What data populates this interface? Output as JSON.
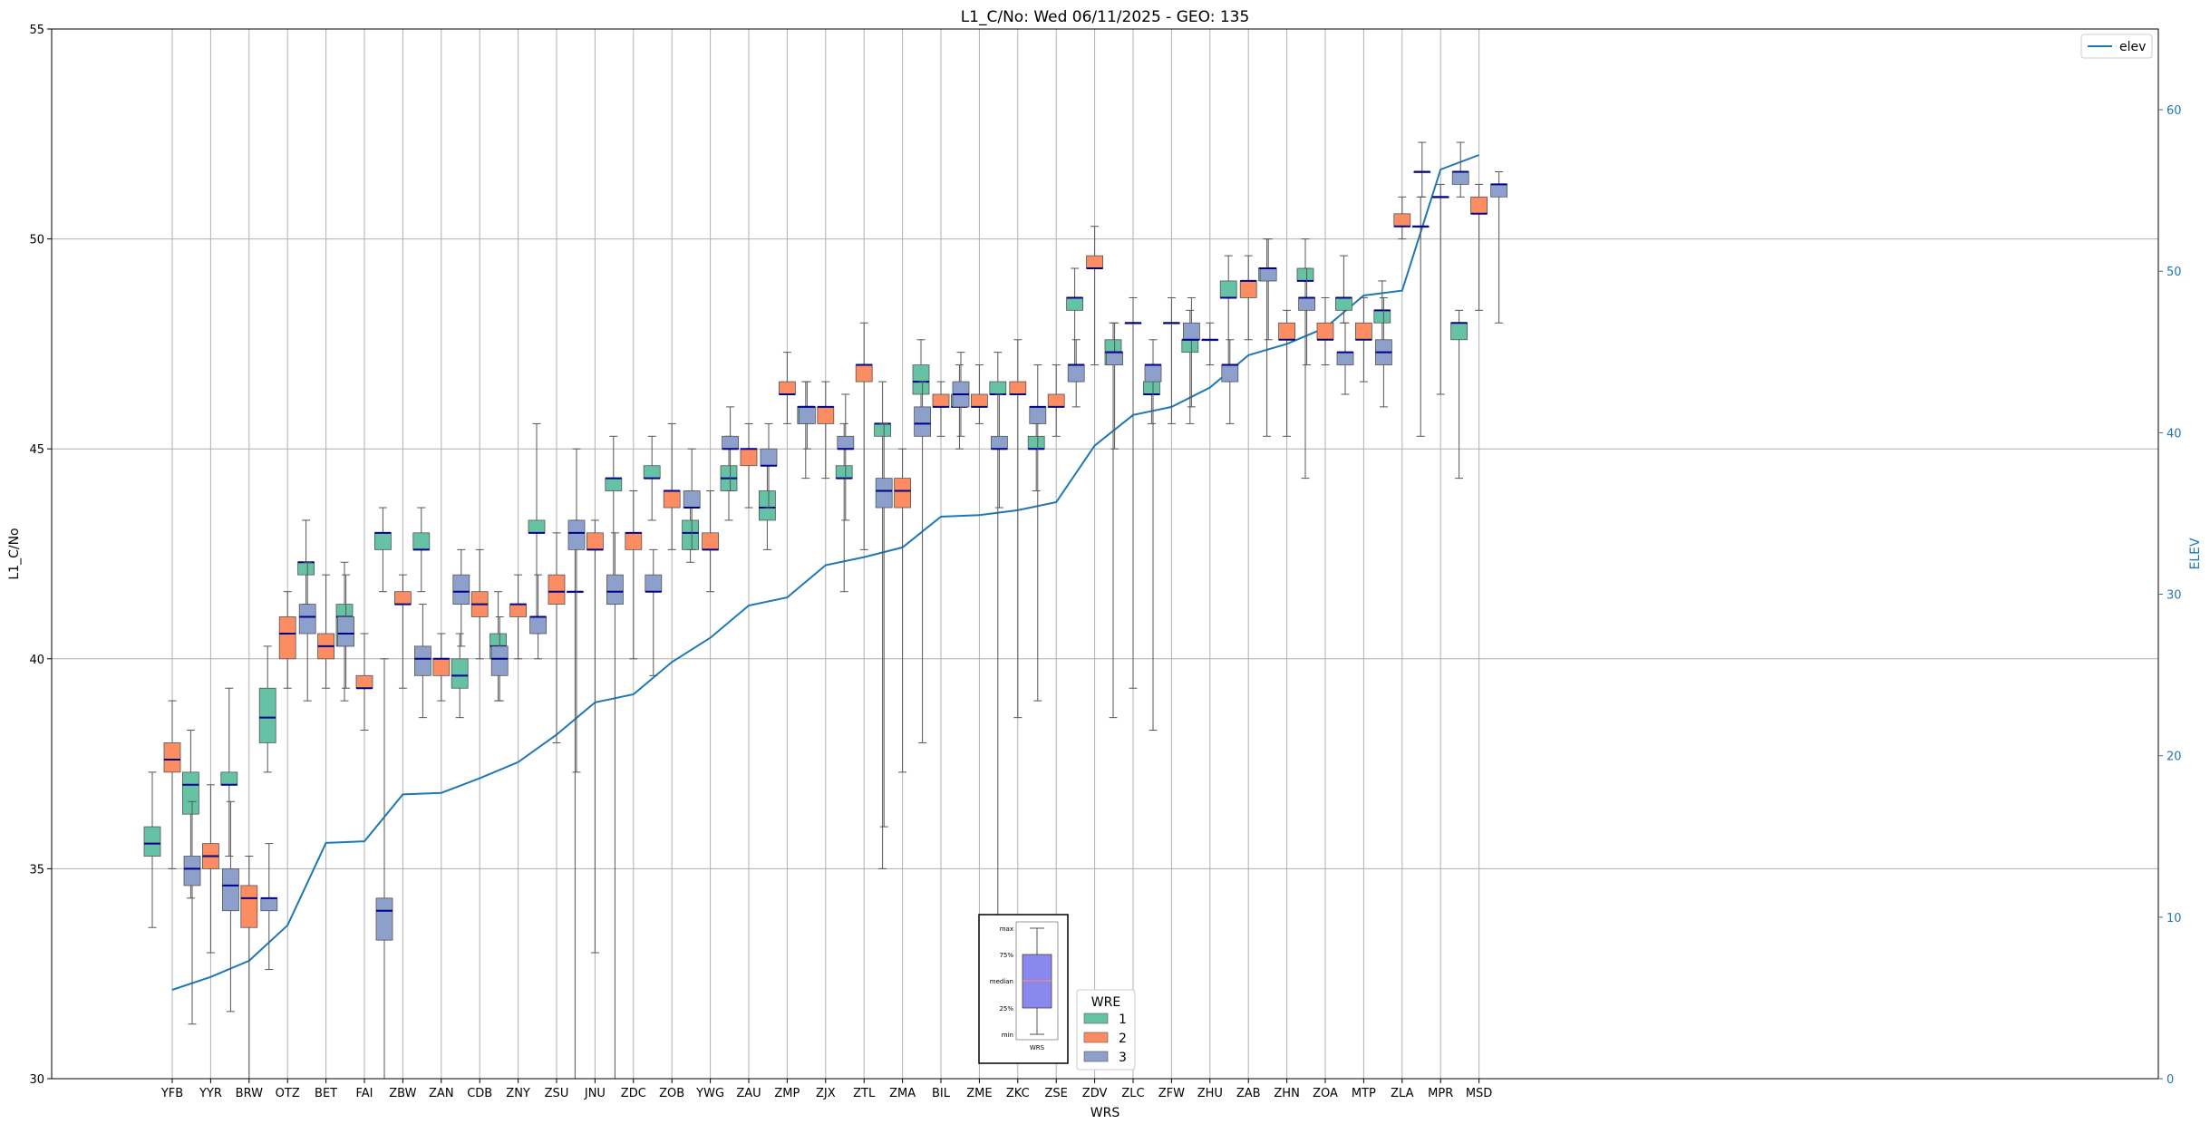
{
  "chart_data": {
    "type": "boxplot",
    "title": "L1_C/No: Wed 06/11/2025 - GEO: 135",
    "xlabel": "WRS",
    "ylabel": "L1_C/No",
    "y2label": "ELEV",
    "ylim": [
      30,
      55
    ],
    "y2lim": [
      0,
      65
    ],
    "yticks": [
      "30",
      "35",
      "40",
      "45",
      "50",
      "55"
    ],
    "y2ticks": [
      "0",
      "10",
      "20",
      "30",
      "40",
      "50",
      "60"
    ],
    "grid": true,
    "categories": [
      "YFB",
      "YYR",
      "BRW",
      "OTZ",
      "BET",
      "FAI",
      "ZBW",
      "ZAN",
      "CDB",
      "ZNY",
      "ZSU",
      "JNU",
      "ZDC",
      "ZOB",
      "YWG",
      "ZAU",
      "ZMP",
      "ZJX",
      "ZTL",
      "ZMA",
      "BIL",
      "ZME",
      "ZKC",
      "ZSE",
      "ZDV",
      "ZLC",
      "ZFW",
      "ZHU",
      "ZAB",
      "ZHN",
      "ZOA",
      "MTP",
      "ZLA",
      "MPR",
      "MSD"
    ],
    "series_colors": {
      "1": "#66c2a5",
      "2": "#fc8d62",
      "3": "#8da0cb"
    },
    "median_color": "#00008b",
    "elev_color": "#1f77b4",
    "series": [
      {
        "name": "1",
        "boxes": [
          [
            33.6,
            35.3,
            35.6,
            36.0,
            37.3
          ],
          [
            34.3,
            36.3,
            37.0,
            37.3,
            38.3
          ],
          [
            35.3,
            37.0,
            37.0,
            37.3,
            39.3
          ],
          [
            37.3,
            38.0,
            38.6,
            39.3,
            40.3
          ],
          [
            41.3,
            42.0,
            42.3,
            42.3,
            43.3
          ],
          [
            39.0,
            40.3,
            41.0,
            41.3,
            42.3
          ],
          [
            41.6,
            42.6,
            43.0,
            43.0,
            43.6
          ],
          [
            41.6,
            42.6,
            42.6,
            43.0,
            43.6
          ],
          [
            38.6,
            39.3,
            39.6,
            40.0,
            40.6
          ],
          [
            39.0,
            40.0,
            40.3,
            40.6,
            41.6
          ],
          [
            40.6,
            43.0,
            43.0,
            43.3,
            45.6
          ],
          [
            30.0,
            41.6,
            41.6,
            41.6,
            43.3
          ],
          [
            41.3,
            44.0,
            44.3,
            44.3,
            45.3
          ],
          [
            43.3,
            44.3,
            44.3,
            44.6,
            45.3
          ],
          [
            42.3,
            42.6,
            43.0,
            43.3,
            44.0
          ],
          [
            43.3,
            44.0,
            44.3,
            44.6,
            45.3
          ],
          [
            42.6,
            43.3,
            43.6,
            44.0,
            44.6
          ],
          [
            44.3,
            45.6,
            46.0,
            46.0,
            46.6
          ],
          [
            41.6,
            44.3,
            44.3,
            44.6,
            45.6
          ],
          [
            35.0,
            45.3,
            45.6,
            45.6,
            46.6
          ],
          [
            45.6,
            46.3,
            46.6,
            47.0,
            47.6
          ],
          [
            45.0,
            46.0,
            46.0,
            46.3,
            47.0
          ],
          [
            32.3,
            46.3,
            46.3,
            46.6,
            47.3
          ],
          [
            44.0,
            45.0,
            45.0,
            45.3,
            45.6
          ],
          [
            46.6,
            48.3,
            48.6,
            48.6,
            49.3
          ],
          [
            38.6,
            47.0,
            47.3,
            47.6,
            48.0
          ],
          [
            45.6,
            46.3,
            46.3,
            46.6,
            47.0
          ],
          [
            45.6,
            47.3,
            47.6,
            47.6,
            48.3
          ],
          [
            46.6,
            48.6,
            48.6,
            49.0,
            49.6
          ],
          [
            45.3,
            49.0,
            49.3,
            49.3,
            50.0
          ],
          [
            44.3,
            49.0,
            49.0,
            49.3,
            50.0
          ],
          [
            48.0,
            48.3,
            48.6,
            48.6,
            49.6
          ],
          [
            47.3,
            48.0,
            48.3,
            48.3,
            49.0
          ],
          [
            45.3,
            50.3,
            50.3,
            50.3,
            51.0
          ],
          [
            44.3,
            47.6,
            48.0,
            48.0,
            48.3
          ]
        ]
      },
      {
        "name": "2",
        "boxes": [
          [
            35.0,
            37.3,
            37.6,
            38.0,
            39.0
          ],
          [
            33.0,
            35.0,
            35.3,
            35.6,
            37.0
          ],
          [
            30.0,
            33.6,
            34.3,
            34.6,
            35.3
          ],
          [
            39.3,
            40.0,
            40.6,
            41.0,
            41.6
          ],
          [
            39.3,
            40.0,
            40.3,
            40.6,
            42.0
          ],
          [
            38.3,
            39.3,
            39.3,
            39.6,
            40.6
          ],
          [
            39.3,
            41.3,
            41.3,
            41.6,
            42.0
          ],
          [
            39.0,
            39.6,
            40.0,
            40.0,
            40.6
          ],
          [
            40.0,
            41.0,
            41.3,
            41.6,
            42.6
          ],
          [
            40.0,
            41.0,
            41.3,
            41.3,
            42.0
          ],
          [
            38.0,
            41.3,
            41.6,
            42.0,
            43.0
          ],
          [
            33.0,
            42.6,
            42.6,
            43.0,
            43.3
          ],
          [
            40.0,
            42.6,
            43.0,
            43.0,
            44.0
          ],
          [
            42.6,
            43.6,
            44.0,
            44.0,
            45.6
          ],
          [
            41.6,
            42.6,
            42.6,
            43.0,
            44.0
          ],
          [
            43.6,
            44.6,
            45.0,
            45.0,
            45.6
          ],
          [
            45.6,
            46.3,
            46.3,
            46.6,
            47.3
          ],
          [
            44.3,
            45.6,
            46.0,
            46.0,
            46.6
          ],
          [
            42.6,
            46.6,
            47.0,
            47.0,
            48.0
          ],
          [
            37.3,
            43.6,
            44.0,
            44.3,
            45.0
          ],
          [
            45.3,
            46.0,
            46.0,
            46.3,
            46.6
          ],
          [
            45.6,
            46.0,
            46.0,
            46.3,
            47.0
          ],
          [
            38.6,
            46.3,
            46.3,
            46.6,
            47.6
          ],
          [
            45.3,
            46.0,
            46.0,
            46.3,
            47.0
          ],
          [
            47.0,
            49.3,
            49.3,
            49.6,
            50.3
          ],
          [
            39.3,
            48.0,
            48.0,
            48.0,
            48.6
          ],
          [
            45.6,
            48.0,
            48.0,
            48.0,
            48.6
          ],
          [
            47.0,
            47.6,
            47.6,
            47.6,
            48.0
          ],
          [
            47.6,
            48.6,
            49.0,
            49.0,
            49.6
          ],
          [
            45.3,
            47.6,
            47.6,
            48.0,
            48.3
          ],
          [
            47.0,
            47.6,
            47.6,
            48.0,
            48.6
          ],
          [
            46.6,
            47.6,
            47.6,
            48.0,
            48.6
          ],
          [
            50.0,
            50.3,
            50.3,
            50.6,
            51.0
          ],
          [
            46.3,
            51.0,
            51.0,
            51.0,
            51.3
          ],
          [
            48.3,
            50.6,
            50.6,
            51.0,
            51.3
          ]
        ]
      },
      {
        "name": "3",
        "boxes": [
          [
            31.3,
            34.6,
            35.0,
            35.3,
            36.6
          ],
          [
            31.6,
            34.0,
            34.6,
            35.0,
            36.6
          ],
          [
            32.6,
            34.0,
            34.3,
            34.3,
            35.6
          ],
          [
            39.0,
            40.6,
            41.0,
            41.3,
            42.3
          ],
          [
            39.3,
            40.3,
            40.6,
            41.0,
            42.0
          ],
          [
            30.0,
            33.3,
            34.0,
            34.3,
            40.0
          ],
          [
            38.6,
            39.6,
            40.0,
            40.3,
            41.3
          ],
          [
            40.3,
            41.3,
            41.6,
            42.0,
            42.6
          ],
          [
            39.0,
            39.6,
            40.0,
            40.3,
            41.0
          ],
          [
            40.0,
            40.6,
            41.0,
            41.0,
            42.0
          ],
          [
            37.3,
            42.6,
            43.0,
            43.3,
            45.0
          ],
          [
            30.0,
            41.3,
            41.6,
            42.0,
            43.0
          ],
          [
            39.6,
            41.6,
            41.6,
            42.0,
            42.6
          ],
          [
            42.6,
            43.6,
            43.6,
            44.0,
            45.0
          ],
          [
            44.0,
            45.0,
            45.0,
            45.3,
            46.0
          ],
          [
            43.6,
            44.6,
            44.6,
            45.0,
            45.6
          ],
          [
            45.0,
            45.6,
            46.0,
            46.0,
            46.6
          ],
          [
            43.3,
            45.0,
            45.0,
            45.3,
            46.3
          ],
          [
            36.0,
            43.6,
            44.0,
            44.3,
            45.6
          ],
          [
            38.0,
            45.3,
            45.6,
            46.0,
            46.6
          ],
          [
            45.3,
            46.0,
            46.3,
            46.6,
            47.3
          ],
          [
            43.6,
            45.0,
            45.0,
            45.3,
            46.3
          ],
          [
            39.0,
            45.6,
            46.0,
            46.0,
            47.0
          ],
          [
            46.0,
            46.6,
            47.0,
            47.0,
            47.6
          ],
          [
            45.0,
            47.0,
            47.3,
            47.3,
            48.0
          ],
          [
            38.3,
            46.6,
            47.0,
            47.0,
            47.6
          ],
          [
            46.0,
            47.6,
            47.6,
            48.0,
            48.6
          ],
          [
            45.6,
            46.6,
            47.0,
            47.0,
            47.6
          ],
          [
            47.6,
            49.0,
            49.3,
            49.3,
            50.0
          ],
          [
            47.0,
            48.3,
            48.6,
            48.6,
            49.3
          ],
          [
            46.3,
            47.0,
            47.3,
            47.3,
            48.0
          ],
          [
            46.0,
            47.0,
            47.3,
            47.6,
            48.6
          ],
          [
            51.0,
            51.6,
            51.6,
            51.6,
            52.3
          ],
          [
            51.0,
            51.3,
            51.6,
            51.6,
            52.3
          ],
          [
            48.0,
            51.0,
            51.3,
            51.3,
            51.6
          ]
        ]
      }
    ],
    "elev": [
      5.5,
      6.3,
      7.3,
      9.5,
      14.6,
      14.7,
      17.6,
      17.7,
      18.6,
      19.6,
      21.3,
      23.3,
      23.8,
      25.8,
      27.3,
      29.3,
      29.8,
      31.8,
      32.3,
      32.9,
      34.8,
      34.9,
      35.2,
      35.7,
      39.2,
      41.1,
      41.6,
      42.8,
      44.8,
      45.5,
      46.5,
      48.5,
      48.8,
      56.3,
      57.2
    ],
    "legend_elev_label": "elev",
    "legend_wre_title": "WRE",
    "legend_wre_entries": [
      "1",
      "2",
      "3"
    ],
    "inset_labels": [
      "max",
      "75%",
      "median",
      "25%",
      "min"
    ],
    "inset_xlabel": "WRS"
  }
}
